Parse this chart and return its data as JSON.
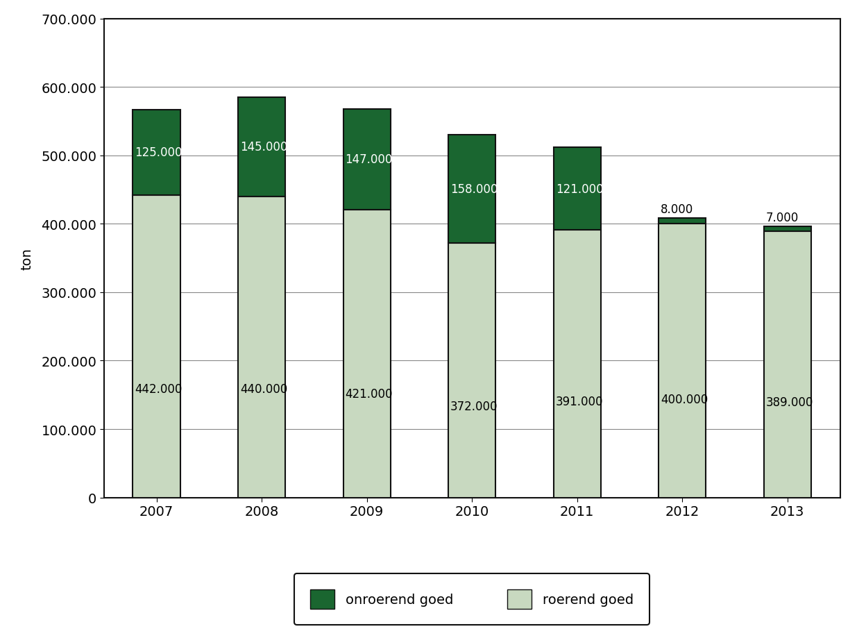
{
  "years": [
    "2007",
    "2008",
    "2009",
    "2010",
    "2011",
    "2012",
    "2013"
  ],
  "roerend": [
    442000,
    440000,
    421000,
    372000,
    391000,
    400000,
    389000
  ],
  "onroerend": [
    125000,
    145000,
    147000,
    158000,
    121000,
    8000,
    7000
  ],
  "roerend_color": "#c8d9c0",
  "onroerend_color": "#1a6630",
  "bar_edge_color": "#111111",
  "ylabel": "ton",
  "ylim_max": 700000,
  "ytick_step": 100000,
  "legend_onroerend": "onroerend goed",
  "legend_roerend": "roerend goed",
  "label_color_onroerend_large": "#ffffff",
  "label_color_onroerend_small": "#000000",
  "label_color_roerend": "#000000",
  "background_color": "#ffffff",
  "bar_width": 0.45,
  "tick_fontsize": 14,
  "label_fontsize": 12,
  "ylabel_fontsize": 14
}
